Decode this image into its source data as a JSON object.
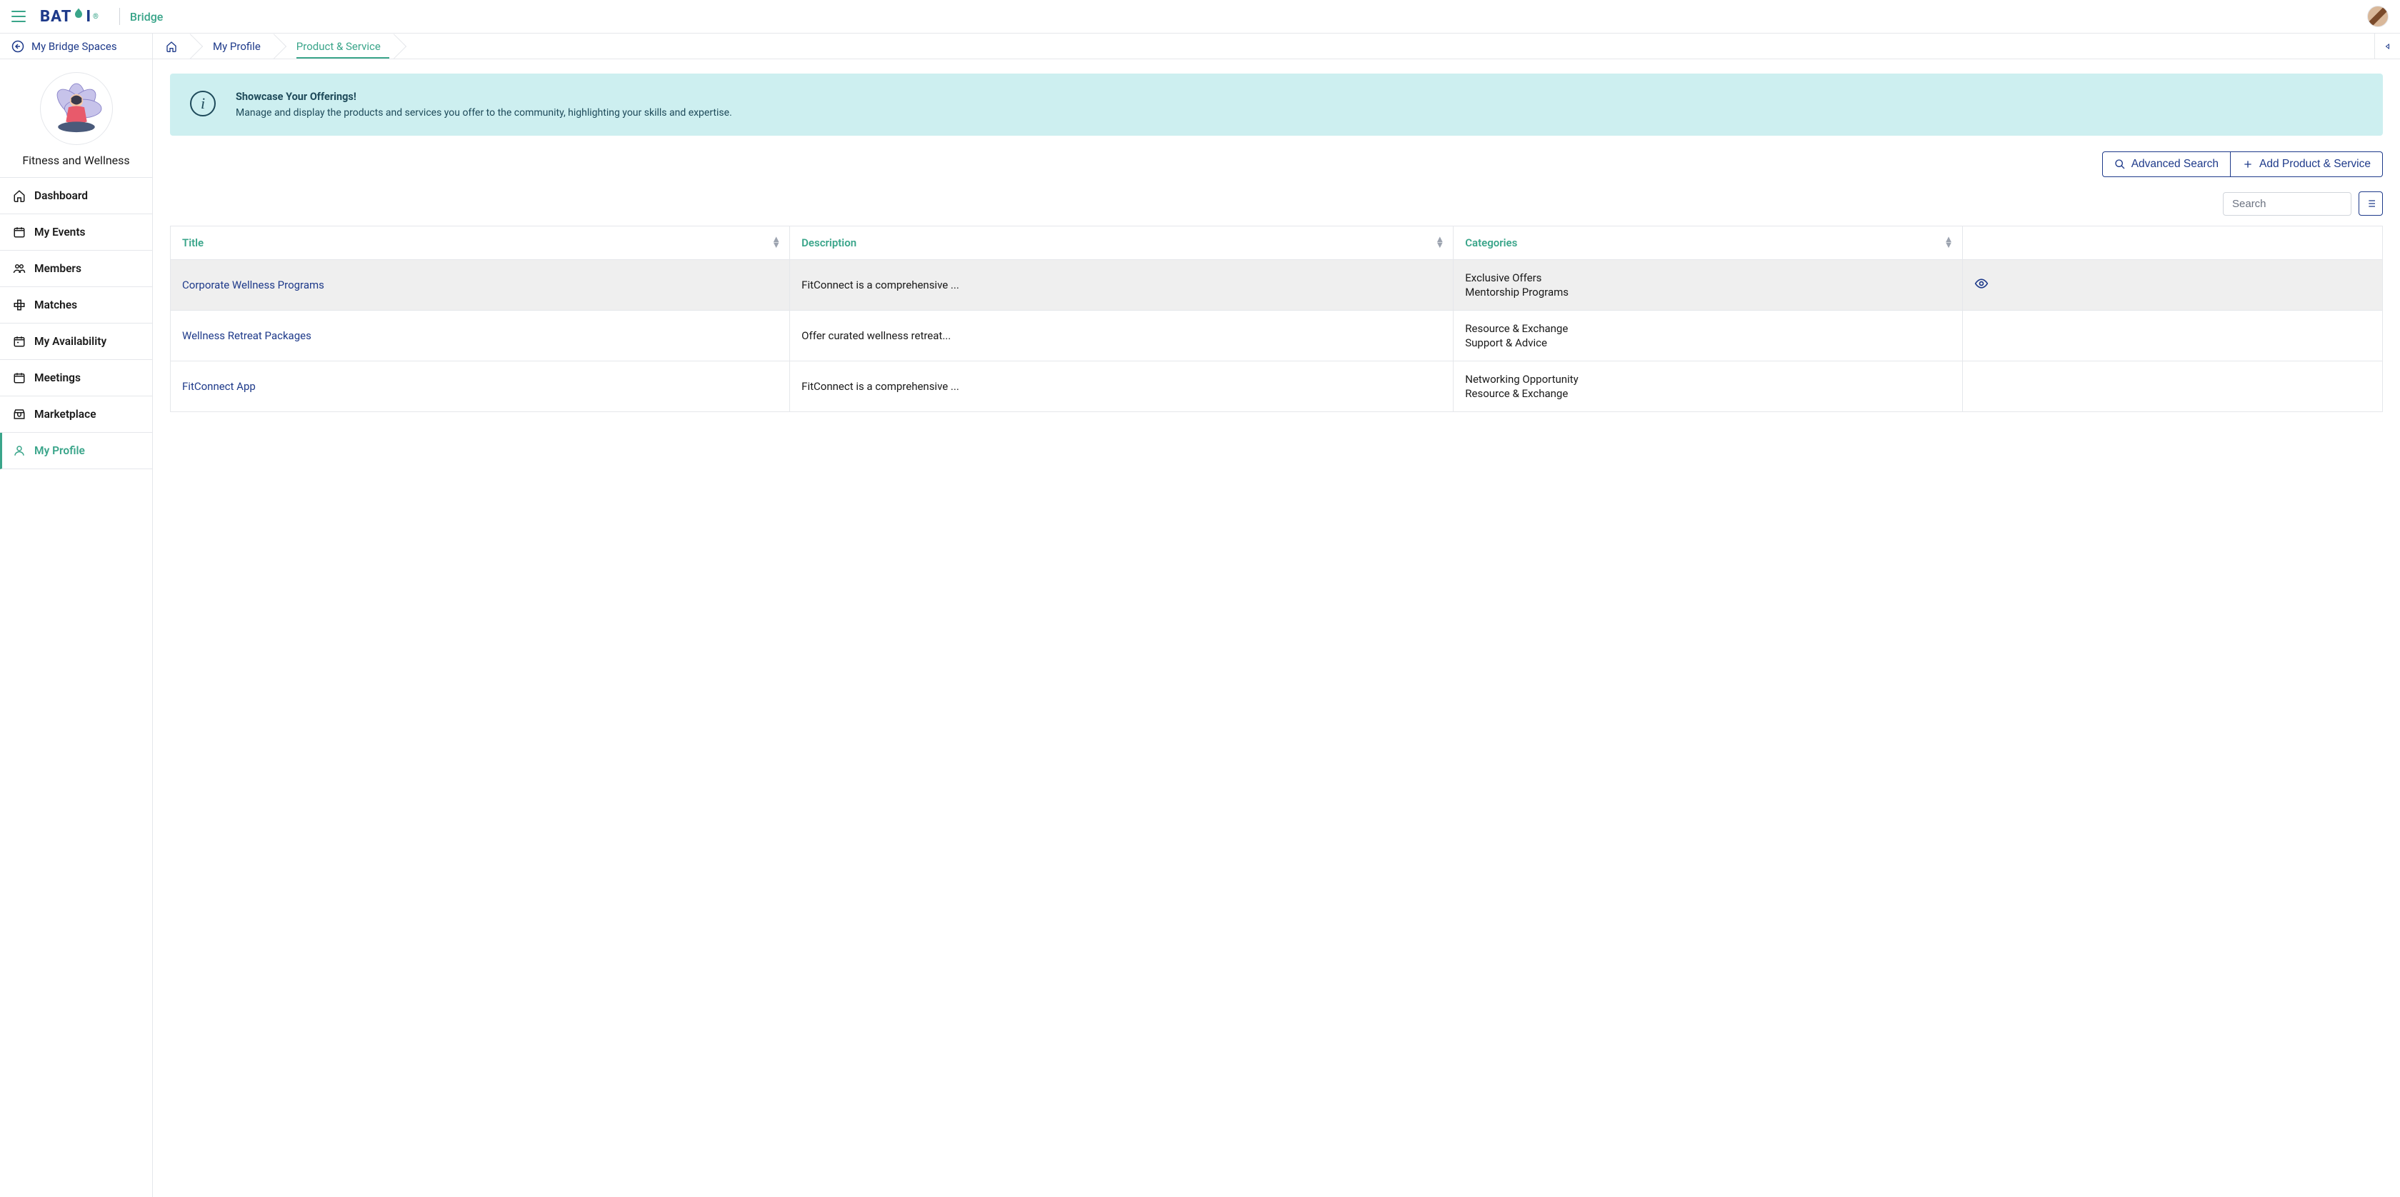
{
  "header": {
    "logo_text": "BAT",
    "logo_suffix": "I",
    "product": "Bridge"
  },
  "sidebar": {
    "back_label": "My Bridge Spaces",
    "space_name": "Fitness and Wellness",
    "items": [
      {
        "label": "Dashboard"
      },
      {
        "label": "My Events"
      },
      {
        "label": "Members"
      },
      {
        "label": "Matches"
      },
      {
        "label": "My Availability"
      },
      {
        "label": "Meetings"
      },
      {
        "label": "Marketplace"
      },
      {
        "label": "My Profile"
      }
    ],
    "active_index": 7
  },
  "breadcrumbs": {
    "items": [
      "My Profile",
      "Product & Service"
    ],
    "active_index": 1
  },
  "banner": {
    "title": "Showcase Your Offerings!",
    "body": "Manage and display the products and services you offer to the community, highlighting your skills and expertise."
  },
  "actions": {
    "advanced_search": "Advanced Search",
    "add_product": "Add Product & Service"
  },
  "search": {
    "placeholder": "Search"
  },
  "table": {
    "columns": [
      "Title",
      "Description",
      "Categories"
    ],
    "rows": [
      {
        "title": "Corporate Wellness Programs",
        "description": "FitConnect is a comprehensive ...",
        "categories": [
          "Exclusive Offers",
          "Mentorship Programs"
        ],
        "hovered": true,
        "show_eye": true
      },
      {
        "title": "Wellness Retreat Packages",
        "description": "Offer curated wellness retreat...",
        "categories": [
          "Resource & Exchange",
          "Support & Advice"
        ],
        "hovered": false,
        "show_eye": false
      },
      {
        "title": "FitConnect App",
        "description": "FitConnect is a comprehensive ...",
        "categories": [
          "Networking Opportunity",
          "Resource & Exchange"
        ],
        "hovered": false,
        "show_eye": false
      }
    ]
  },
  "colors": {
    "accent_green": "#3aa58a",
    "accent_navy": "#1e3a8a",
    "banner_bg": "#cdeff0",
    "banner_text": "#1e4a5a",
    "border": "#e5e7eb",
    "row_hover": "#efefef"
  }
}
